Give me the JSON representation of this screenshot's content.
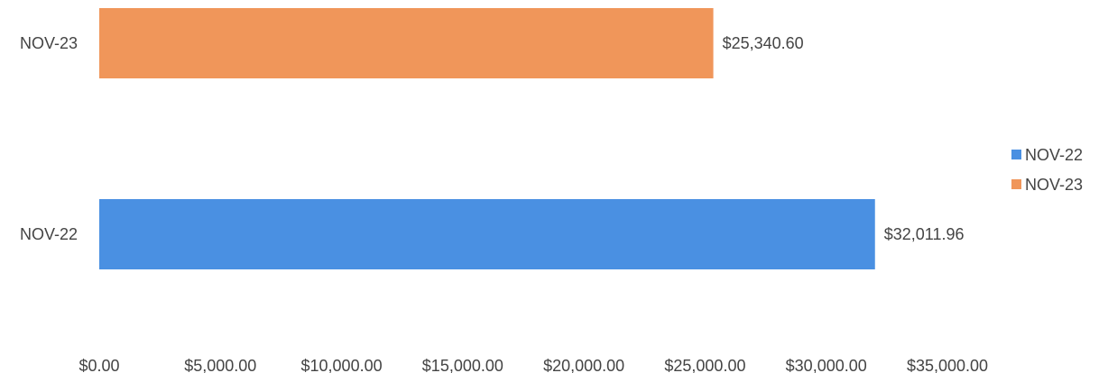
{
  "chart_data": {
    "type": "bar",
    "orientation": "horizontal",
    "categories": [
      "NOV-23",
      "NOV-22"
    ],
    "values": [
      25340.6,
      32011.96
    ],
    "value_labels": [
      "$25,340.60",
      "$32,011.96"
    ],
    "xlim": [
      0,
      35000
    ],
    "x_ticks": [
      0,
      5000,
      10000,
      15000,
      20000,
      25000,
      30000,
      35000
    ],
    "x_tick_labels": [
      "$0.00",
      "$5,000.00",
      "$10,000.00",
      "$15,000.00",
      "$20,000.00",
      "$25,000.00",
      "$30,000.00",
      "$35,000.00"
    ],
    "colors": [
      "#F0965A",
      "#4A90E2"
    ],
    "grid": false,
    "legend": {
      "position": "right",
      "entries": [
        {
          "label": "NOV-22",
          "color": "#4A90E2"
        },
        {
          "label": "NOV-23",
          "color": "#F0965A"
        }
      ]
    }
  }
}
